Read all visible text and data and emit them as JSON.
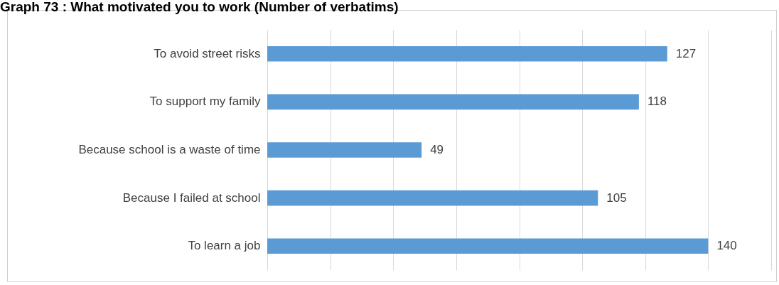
{
  "chart_data": {
    "type": "bar",
    "orientation": "horizontal",
    "title": "Graph 73 : What motivated you to work (Number of verbatims)",
    "categories": [
      "To avoid street  risks",
      "To support my family ",
      "Because school is a waste of time",
      "Because I failed at school",
      "To learn a job"
    ],
    "values": [
      127,
      118,
      49,
      105,
      140
    ],
    "color": "#5b9bd5",
    "data_labels": true,
    "grid": "x",
    "tick_labels": "y",
    "xlim": [
      0,
      160
    ],
    "xticks": [
      {
        "value": 0,
        "label": null
      },
      {
        "value": 20,
        "label": null
      },
      {
        "value": 40,
        "label": null
      },
      {
        "value": 60,
        "label": null
      },
      {
        "value": 80,
        "label": null
      },
      {
        "value": 100,
        "label": null
      },
      {
        "value": 120,
        "label": null
      },
      {
        "value": 140,
        "label": null
      },
      {
        "value": 160,
        "label": null
      }
    ]
  }
}
